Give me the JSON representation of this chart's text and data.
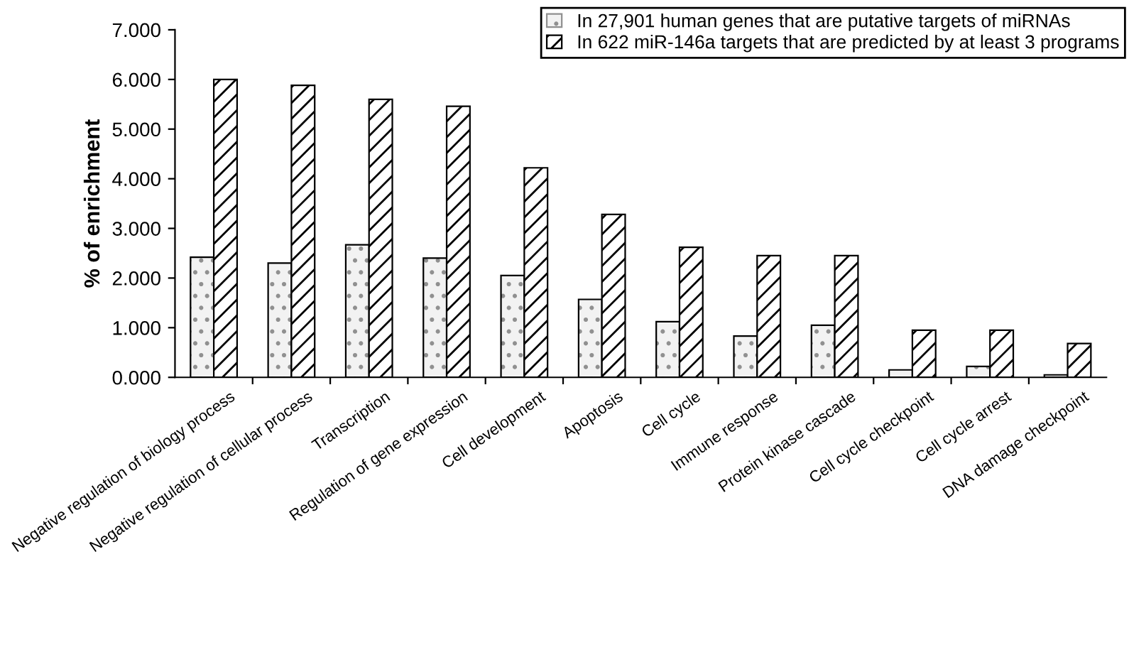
{
  "chart_data": {
    "type": "bar",
    "ylabel": "% of enrichment",
    "categories": [
      "Negative regulation of biology process",
      "Negative regulation of cellular process",
      "Transcription",
      "Regulation of gene expression",
      "Cell development",
      "Apoptosis",
      "Cell cycle",
      "Immune response",
      "Protein kinase cascade",
      "Cell cycle checkpoint",
      "Cell cycle arrest",
      "DNA damage checkpoint"
    ],
    "series": [
      {
        "name": "In 27,901 human genes that are putative targets of miRNAs",
        "color": "#f2f2f2",
        "values": [
          2.42,
          2.3,
          2.67,
          2.4,
          2.05,
          1.57,
          1.12,
          0.83,
          1.05,
          0.15,
          0.22,
          0.05
        ]
      },
      {
        "name": "In 622 miR-146a targets that are predicted by at least 3 programs",
        "color": "#ffffff",
        "values": [
          6.0,
          5.88,
          5.6,
          5.46,
          4.22,
          3.28,
          2.62,
          2.45,
          2.45,
          0.95,
          0.95,
          0.68
        ]
      }
    ],
    "ylim": [
      0,
      7
    ],
    "yticks": [
      {
        "value": 0,
        "label": "0.000"
      },
      {
        "value": 1,
        "label": "1.000"
      },
      {
        "value": 2,
        "label": "2.000"
      },
      {
        "value": 3,
        "label": "3.000"
      },
      {
        "value": 4,
        "label": "4.000"
      },
      {
        "value": 5,
        "label": "5.000"
      },
      {
        "value": 6,
        "label": "6.000"
      },
      {
        "value": 7,
        "label": "7.000"
      }
    ],
    "legend": "top right",
    "grid": false
  }
}
